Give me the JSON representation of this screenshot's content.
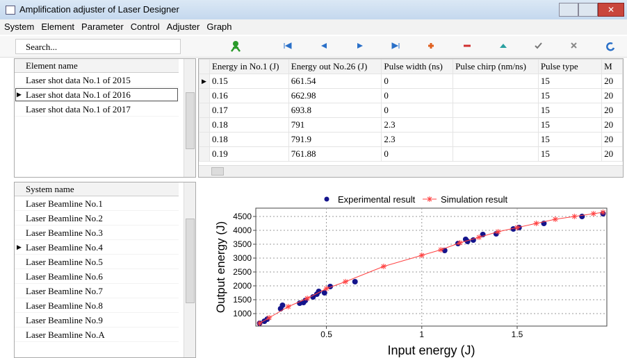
{
  "window": {
    "title": "Amplification adjuster of Laser Designer"
  },
  "menu": [
    "System",
    "Element",
    "Parameter",
    "Control",
    "Adjuster",
    "Graph"
  ],
  "search": "Search...",
  "element_list": {
    "header": "Element name",
    "items": [
      "Laser shot data No.1 of 2015",
      "Laser shot data No.1 of 2016",
      "Laser shot data No.1 of 2017"
    ]
  },
  "table": {
    "headers": [
      "Energy in No.1 (J)",
      "Energy out No.26 (J)",
      "Pulse width (ns)",
      "Pulse chirp (nm/ns)",
      "Pulse type",
      "M"
    ],
    "rows": [
      [
        0.15,
        661.54,
        0,
        "",
        15,
        "20"
      ],
      [
        0.16,
        662.98,
        0,
        "",
        15,
        "20"
      ],
      [
        0.17,
        693.8,
        0,
        "",
        15,
        "20"
      ],
      [
        0.18,
        791,
        2.3,
        "",
        15,
        "20"
      ],
      [
        0.18,
        791.9,
        2.3,
        "",
        15,
        "20"
      ],
      [
        0.19,
        761.88,
        0,
        "",
        15,
        "20"
      ]
    ]
  },
  "system_list": {
    "header": "System name",
    "items": [
      "Laser Beamline No.1",
      "Laser Beamline No.2",
      "Laser Beamline No.3",
      "Laser Beamline No.4",
      "Laser Beamline No.5",
      "Laser Beamline No.6",
      "Laser Beamline No.7",
      "Laser Beamline No.8",
      "Laser Beamline No.9",
      "Laser Beamline No.A"
    ]
  },
  "chart_data": {
    "type": "scatter",
    "x_label": "Input energy (J)",
    "y_label": "Output energy (J)",
    "xlim": [
      0.13,
      1.97
    ],
    "ylim": [
      550,
      4800
    ],
    "xticks": [
      0.5,
      1,
      1.5
    ],
    "yticks": [
      1000,
      1500,
      2000,
      2500,
      3000,
      3500,
      4000,
      4500
    ],
    "grid": true,
    "legend": "top",
    "series": [
      {
        "name": "Experimental result",
        "color": "#14148c",
        "x": [
          0.15,
          0.175,
          0.19,
          0.26,
          0.27,
          0.36,
          0.38,
          0.39,
          0.43,
          0.45,
          0.46,
          0.49,
          0.52,
          0.65,
          1.12,
          1.19,
          1.23,
          1.24,
          1.27,
          1.32,
          1.39,
          1.48,
          1.51,
          1.64,
          1.84,
          1.95
        ],
        "values": [
          650,
          725,
          800,
          1175,
          1300,
          1375,
          1400,
          1475,
          1600,
          1700,
          1800,
          1750,
          1975,
          2150,
          3275,
          3525,
          3675,
          3600,
          3650,
          3850,
          3875,
          4050,
          4100,
          4250,
          4500,
          4600
        ]
      },
      {
        "name": "Simulation result",
        "color": "#ff4040",
        "x": [
          0.15,
          0.2,
          0.3,
          0.4,
          0.5,
          0.6,
          0.8,
          1.0,
          1.1,
          1.2,
          1.3,
          1.4,
          1.5,
          1.6,
          1.7,
          1.8,
          1.9,
          1.95
        ],
        "values": [
          650,
          850,
          1250,
          1550,
          1900,
          2150,
          2700,
          3100,
          3300,
          3550,
          3750,
          3950,
          4100,
          4250,
          4400,
          4500,
          4600,
          4650
        ]
      }
    ]
  }
}
